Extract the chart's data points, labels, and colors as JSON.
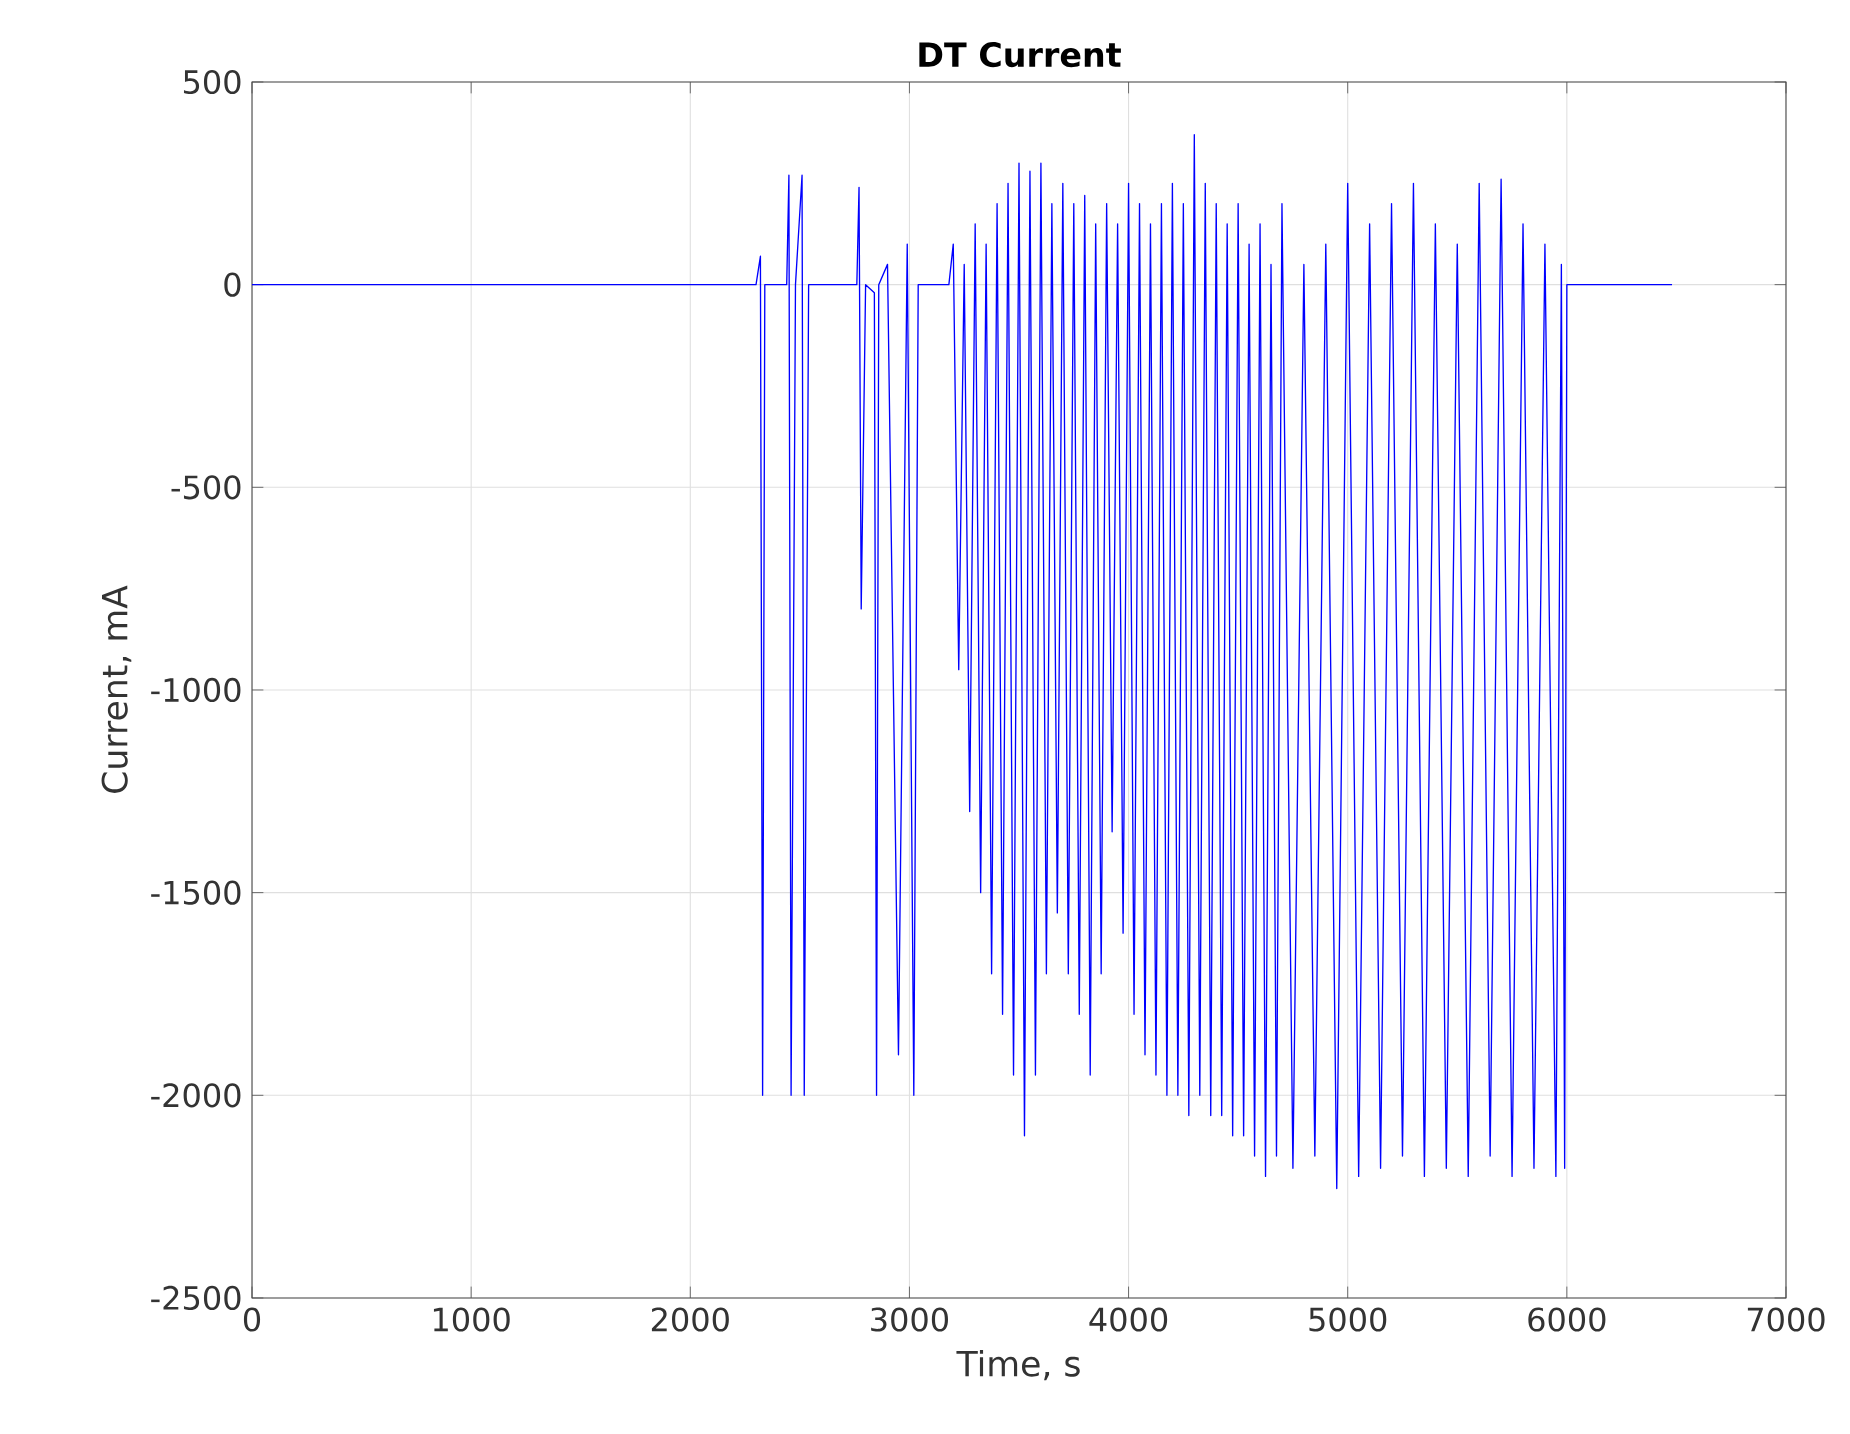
{
  "chart_data": {
    "type": "line",
    "title": "DT Current",
    "xlabel": "Time, s",
    "ylabel": "Current, mA",
    "x": [
      0,
      2300,
      2320,
      2330,
      2340,
      2440,
      2450,
      2460,
      2480,
      2510,
      2520,
      2540,
      2760,
      2770,
      2780,
      2800,
      2840,
      2850,
      2860,
      2900,
      2950,
      2990,
      3020,
      3040,
      3180,
      3200,
      3225,
      3250,
      3275,
      3300,
      3325,
      3350,
      3375,
      3400,
      3425,
      3450,
      3475,
      3500,
      3525,
      3550,
      3575,
      3600,
      3625,
      3650,
      3675,
      3700,
      3725,
      3750,
      3775,
      3800,
      3825,
      3850,
      3875,
      3900,
      3925,
      3950,
      3975,
      4000,
      4025,
      4050,
      4075,
      4100,
      4125,
      4150,
      4175,
      4200,
      4225,
      4250,
      4275,
      4300,
      4325,
      4350,
      4375,
      4400,
      4425,
      4450,
      4475,
      4500,
      4525,
      4550,
      4575,
      4600,
      4625,
      4650,
      4675,
      4700,
      4750,
      4800,
      4850,
      4900,
      4950,
      5000,
      5050,
      5100,
      5150,
      5200,
      5250,
      5300,
      5350,
      5400,
      5450,
      5500,
      5550,
      5600,
      5650,
      5700,
      5750,
      5800,
      5850,
      5900,
      5950,
      5975,
      5990,
      6000,
      6480
    ],
    "values": [
      0,
      0,
      70,
      -2000,
      0,
      0,
      270,
      -2000,
      0,
      270,
      -2000,
      0,
      0,
      240,
      -800,
      0,
      -20,
      -2000,
      0,
      50,
      -1900,
      100,
      -2000,
      0,
      0,
      100,
      -950,
      50,
      -1300,
      150,
      -1500,
      100,
      -1700,
      200,
      -1800,
      250,
      -1950,
      300,
      -2100,
      280,
      -1950,
      300,
      -1700,
      200,
      -1550,
      250,
      -1700,
      200,
      -1800,
      220,
      -1950,
      150,
      -1700,
      200,
      -1350,
      150,
      -1600,
      250,
      -1800,
      200,
      -1900,
      150,
      -1950,
      200,
      -2000,
      250,
      -2000,
      200,
      -2050,
      370,
      -2000,
      250,
      -2050,
      200,
      -2050,
      150,
      -2100,
      200,
      -2100,
      100,
      -2150,
      150,
      -2200,
      50,
      -2150,
      200,
      -2180,
      50,
      -2150,
      100,
      -2230,
      250,
      -2200,
      150,
      -2180,
      200,
      -2150,
      250,
      -2200,
      150,
      -2180,
      100,
      -2200,
      250,
      -2150,
      260,
      -2200,
      150,
      -2180,
      100,
      -2200,
      50,
      -2180,
      0,
      0
    ],
    "color": "#0000ff",
    "xlim": [
      0,
      7000
    ],
    "ylim": [
      -2500,
      500
    ],
    "xticks": [
      0,
      1000,
      2000,
      3000,
      4000,
      5000,
      6000,
      7000
    ],
    "yticks": [
      -2500,
      -2000,
      -1500,
      -1000,
      -500,
      0,
      500
    ],
    "grid": true
  }
}
